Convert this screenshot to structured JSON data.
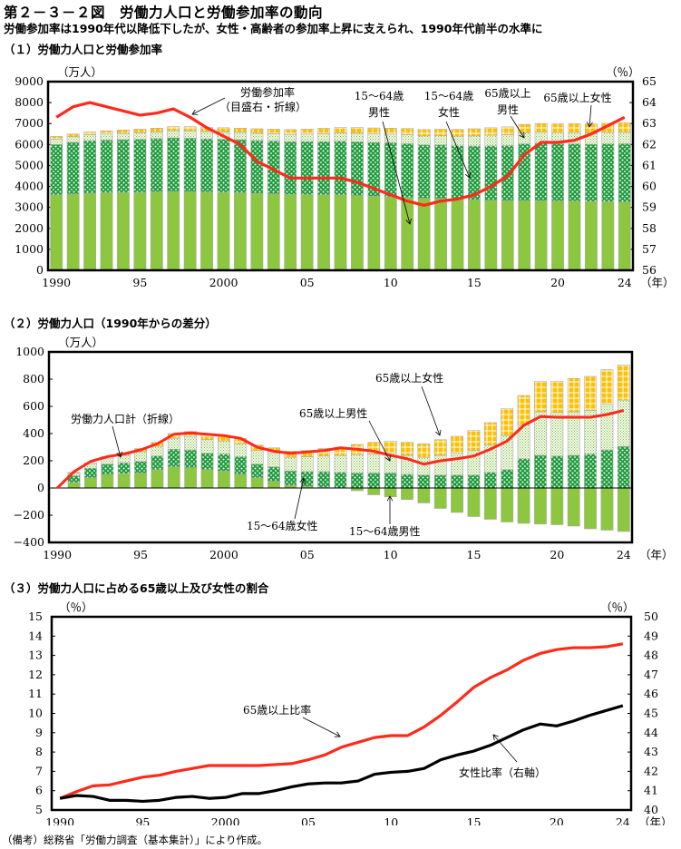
{
  "header": {
    "title": "第２－３－２図　労働力人口と労働参加率の動向",
    "subtitle": "労働参加率は1990年代以降低下したが、女性・高齢者の参加率上昇に支えられ、1990年代前半の水準に",
    "note": "（備考）総務省「労働力調査（基本集計）」により作成。"
  },
  "colors": {
    "male_15_64": "#8dc63f",
    "female_15_64": "#1e9c3c",
    "male_65plus": "#c9e6a0",
    "female_65plus": "#ffc000",
    "line_red": "#ff2a1a",
    "line_black": "#000000"
  },
  "chart_data": [
    {
      "id": "chart1",
      "type": "bar",
      "stacked": true,
      "title": "（１）労働力人口と労働参加率",
      "ylabel": "（万人）",
      "y2label": "（％）",
      "xunit": "（年）",
      "ylim": [
        0,
        9000
      ],
      "yticks": [
        0,
        1000,
        2000,
        3000,
        4000,
        5000,
        6000,
        7000,
        8000,
        9000
      ],
      "y2lim": [
        56,
        65
      ],
      "y2ticks": [
        56,
        57,
        58,
        59,
        60,
        61,
        62,
        63,
        64,
        65
      ],
      "x": [
        1990,
        1991,
        1992,
        1993,
        1994,
        1995,
        1996,
        1997,
        1998,
        1999,
        2000,
        2001,
        2002,
        2003,
        2004,
        2005,
        2006,
        2007,
        2008,
        2009,
        2010,
        2011,
        2012,
        2013,
        2014,
        2015,
        2016,
        2017,
        2018,
        2019,
        2020,
        2021,
        2022,
        2023,
        2024
      ],
      "xtick_labels": {
        "1990": "1990",
        "1995": "95",
        "2000": "2000",
        "2005": "05",
        "2010": "10",
        "2015": "15",
        "2020": "20",
        "2024": "24"
      },
      "series": [
        {
          "name": "15～64歳男性",
          "key": "male_15_64",
          "values": [
            3600,
            3640,
            3680,
            3700,
            3710,
            3720,
            3740,
            3760,
            3750,
            3730,
            3720,
            3700,
            3670,
            3650,
            3620,
            3610,
            3600,
            3600,
            3570,
            3530,
            3500,
            3480,
            3440,
            3430,
            3390,
            3370,
            3350,
            3330,
            3330,
            3320,
            3310,
            3300,
            3280,
            3270,
            3260
          ]
        },
        {
          "name": "15～64歳女性",
          "key": "female_15_64",
          "values": [
            2400,
            2460,
            2500,
            2510,
            2520,
            2530,
            2540,
            2560,
            2550,
            2540,
            2530,
            2530,
            2520,
            2520,
            2520,
            2530,
            2540,
            2560,
            2560,
            2560,
            2580,
            2560,
            2540,
            2550,
            2550,
            2560,
            2590,
            2620,
            2700,
            2730,
            2720,
            2730,
            2730,
            2760,
            2780
          ]
        },
        {
          "name": "65歳以上男性",
          "key": "male_65plus",
          "values": [
            260,
            270,
            280,
            290,
            300,
            310,
            320,
            340,
            350,
            350,
            350,
            350,
            350,
            350,
            350,
            360,
            380,
            390,
            410,
            420,
            420,
            430,
            430,
            440,
            460,
            480,
            500,
            510,
            530,
            540,
            540,
            540,
            540,
            540,
            540
          ]
        },
        {
          "name": "65歳以上女性",
          "key": "female_65plus",
          "values": [
            124,
            130,
            140,
            150,
            160,
            170,
            180,
            190,
            200,
            200,
            200,
            200,
            210,
            210,
            220,
            230,
            250,
            260,
            270,
            280,
            280,
            290,
            300,
            310,
            320,
            340,
            360,
            380,
            400,
            410,
            410,
            420,
            430,
            440,
            450
          ]
        }
      ],
      "line": {
        "name": "労働参加率（目盛右・折線）",
        "axis": "right",
        "values": [
          63.3,
          63.8,
          64.0,
          63.8,
          63.6,
          63.4,
          63.5,
          63.7,
          63.3,
          62.8,
          62.4,
          62.0,
          61.2,
          60.8,
          60.4,
          60.4,
          60.4,
          60.4,
          60.2,
          59.9,
          59.6,
          59.3,
          59.1,
          59.3,
          59.4,
          59.6,
          60.0,
          60.5,
          61.5,
          62.1,
          62.1,
          62.2,
          62.5,
          62.9,
          63.3
        ]
      },
      "annotations": [
        {
          "text": "労働参加率",
          "line2": "（目盛右・折線）"
        },
        {
          "text": "15～64歳",
          "line2": "男性"
        },
        {
          "text": "15～64歳",
          "line2": "女性"
        },
        {
          "text": "65歳以上",
          "line2": "男性"
        },
        {
          "text": "65歳以上女性",
          "line2": ""
        }
      ]
    },
    {
      "id": "chart2",
      "type": "bar",
      "stacked": true,
      "title": "（２）労働力人口（1990年からの差分）",
      "ylabel": "（万人）",
      "xunit": "（年）",
      "ylim": [
        -400,
        1000
      ],
      "yticks": [
        -400,
        -200,
        0,
        200,
        400,
        600,
        800,
        1000
      ],
      "x": [
        1990,
        1991,
        1992,
        1993,
        1994,
        1995,
        1996,
        1997,
        1998,
        1999,
        2000,
        2001,
        2002,
        2003,
        2004,
        2005,
        2006,
        2007,
        2008,
        2009,
        2010,
        2011,
        2012,
        2013,
        2014,
        2015,
        2016,
        2017,
        2018,
        2019,
        2020,
        2021,
        2022,
        2023,
        2024
      ],
      "xtick_labels": {
        "1990": "1990",
        "1995": "95",
        "2000": "2000",
        "2005": "05",
        "2010": "10",
        "2015": "15",
        "2020": "20",
        "2024": "24"
      },
      "series": [
        {
          "name": "15～64歳男性",
          "key": "male_15_64",
          "values": [
            0,
            40,
            75,
            100,
            105,
            110,
            135,
            155,
            150,
            135,
            125,
            100,
            75,
            50,
            20,
            10,
            5,
            0,
            -20,
            -50,
            -65,
            -85,
            -110,
            -150,
            -180,
            -210,
            -230,
            -250,
            -260,
            -265,
            -270,
            -280,
            -300,
            -310,
            -320
          ]
        },
        {
          "name": "15～64歳女性",
          "key": "female_15_64",
          "values": [
            0,
            50,
            70,
            75,
            80,
            85,
            100,
            130,
            130,
            120,
            125,
            130,
            100,
            105,
            105,
            110,
            115,
            115,
            110,
            110,
            110,
            100,
            95,
            95,
            95,
            95,
            115,
            135,
            215,
            240,
            235,
            240,
            250,
            280,
            305
          ]
        },
        {
          "name": "65歳以上男性",
          "key": "male_65plus",
          "values": [
            0,
            20,
            30,
            40,
            55,
            70,
            70,
            80,
            95,
            100,
            95,
            95,
            100,
            100,
            100,
            110,
            115,
            125,
            135,
            140,
            145,
            140,
            130,
            145,
            160,
            180,
            200,
            250,
            250,
            320,
            320,
            320,
            320,
            335,
            340
          ]
        },
        {
          "name": "65歳以上女性",
          "key": "female_65plus",
          "values": [
            0,
            5,
            10,
            15,
            20,
            25,
            30,
            35,
            40,
            40,
            40,
            40,
            40,
            40,
            45,
            45,
            55,
            60,
            75,
            85,
            90,
            95,
            100,
            115,
            125,
            150,
            165,
            200,
            215,
            225,
            230,
            245,
            250,
            255,
            260
          ]
        }
      ],
      "line": {
        "name": "労働力人口計（折線）",
        "values": [
          0,
          120,
          195,
          230,
          250,
          280,
          325,
          395,
          405,
          395,
          385,
          365,
          300,
          270,
          255,
          265,
          275,
          295,
          285,
          270,
          240,
          215,
          175,
          200,
          215,
          235,
          285,
          345,
          460,
          525,
          520,
          520,
          520,
          540,
          570
        ]
      },
      "annotations": [
        {
          "text": "労働力人口計（折線）"
        },
        {
          "text": "65歳以上女性"
        },
        {
          "text": "65歳以上男性"
        },
        {
          "text": "15～64歳女性"
        },
        {
          "text": "15～64歳男性"
        }
      ]
    },
    {
      "id": "chart3",
      "type": "line",
      "title": "（３）労働力人口に占める65歳以上及び女性の割合",
      "ylabel": "（％）",
      "y2label": "（％）",
      "xunit": "（年）",
      "ylim": [
        5,
        15
      ],
      "yticks": [
        5,
        6,
        7,
        8,
        9,
        10,
        11,
        12,
        13,
        14,
        15
      ],
      "y2lim": [
        40,
        50
      ],
      "y2ticks": [
        40,
        41,
        42,
        43,
        44,
        45,
        46,
        47,
        48,
        49,
        50
      ],
      "x": [
        1990,
        1991,
        1992,
        1993,
        1994,
        1995,
        1996,
        1997,
        1998,
        1999,
        2000,
        2001,
        2002,
        2003,
        2004,
        2005,
        2006,
        2007,
        2008,
        2009,
        2010,
        2011,
        2012,
        2013,
        2014,
        2015,
        2016,
        2017,
        2018,
        2019,
        2020,
        2021,
        2022,
        2023,
        2024
      ],
      "xtick_labels": {
        "1990": "1990",
        "1995": "95",
        "2000": "2000",
        "2005": "05",
        "2010": "10",
        "2015": "15",
        "2020": "20",
        "2024": "24"
      },
      "series": [
        {
          "name": "65歳以上比率",
          "axis": "left",
          "color_key": "line_red",
          "values": [
            5.6,
            5.95,
            6.25,
            6.3,
            6.5,
            6.7,
            6.8,
            7.0,
            7.15,
            7.3,
            7.3,
            7.3,
            7.3,
            7.35,
            7.4,
            7.6,
            7.85,
            8.25,
            8.5,
            8.75,
            8.85,
            8.85,
            9.3,
            9.9,
            10.6,
            11.35,
            11.85,
            12.25,
            12.75,
            13.1,
            13.3,
            13.4,
            13.4,
            13.45,
            13.6
          ]
        },
        {
          "name": "女性比率（右軸）",
          "axis": "right",
          "color_key": "line_black",
          "values": [
            40.6,
            40.75,
            40.7,
            40.5,
            40.5,
            40.45,
            40.5,
            40.65,
            40.7,
            40.6,
            40.65,
            40.85,
            40.85,
            41.0,
            41.2,
            41.35,
            41.4,
            41.4,
            41.5,
            41.85,
            41.95,
            42.0,
            42.15,
            42.6,
            42.85,
            43.05,
            43.35,
            43.75,
            44.15,
            44.45,
            44.35,
            44.6,
            44.9,
            45.15,
            45.4
          ]
        }
      ],
      "annotations": [
        {
          "text": "65歳以上比率"
        },
        {
          "text": "女性比率（右軸）"
        }
      ]
    }
  ]
}
